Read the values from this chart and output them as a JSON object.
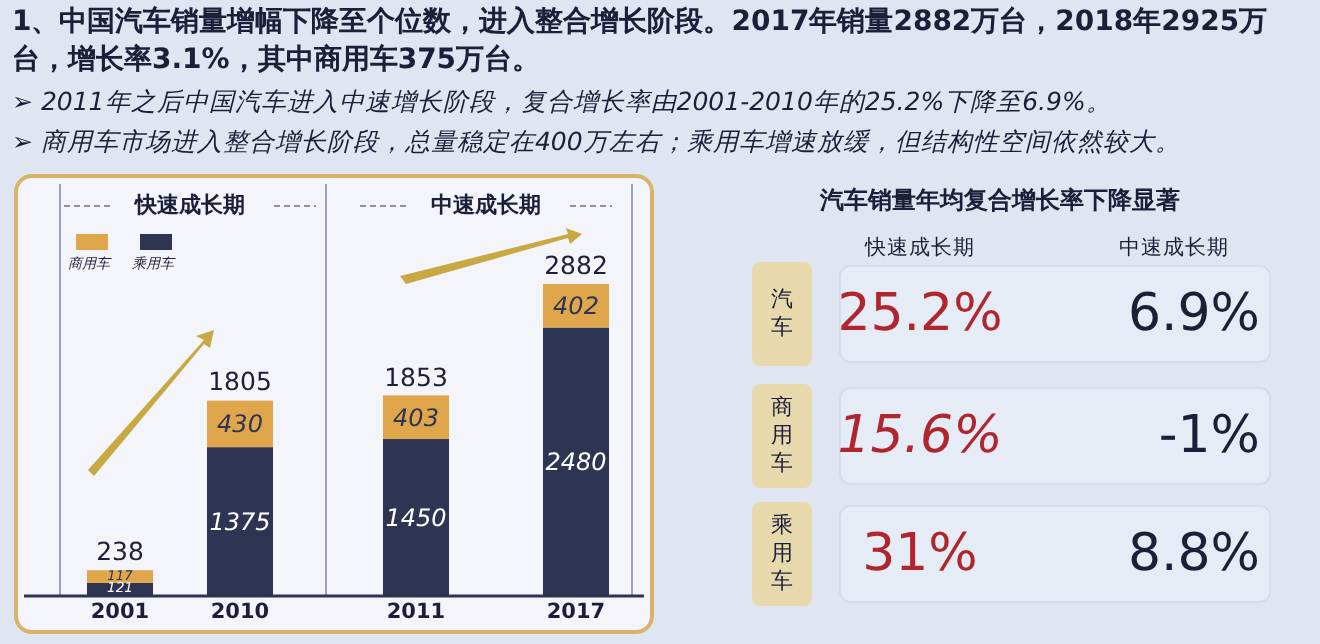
{
  "chart_data": [
    {
      "type": "bar",
      "stacked": true,
      "title": "1、中国汽车销量增幅下降至个位数，进入整合增长阶段。2017年销量2882万台，2018年2925万台，增长率3.1%，其中商用车375万台。",
      "annotations": [
        "➢ 2011年之后中国汽车进入中速增长阶段，复合增长率由2001-2010年的25.2%下降至6.9%。",
        "➢ 商用车市场进入整合增长阶段，总量稳定在400万左右；乘用车增速放缓，但结构性空间依然较大。",
        "快速成长期",
        "中速成长期"
      ],
      "categories": [
        "2001",
        "2010",
        "2011",
        "2017"
      ],
      "series": [
        {
          "name": "乘用车",
          "color": "#2e3552",
          "values": [
            121,
            1375,
            1450,
            2480
          ]
        },
        {
          "name": "商用车",
          "color": "#e0a64c",
          "values": [
            117,
            430,
            403,
            402
          ]
        }
      ],
      "totals": [
        "238",
        "1805",
        "1853",
        "2882"
      ],
      "data_labels": true,
      "legend": "top left"
    },
    {
      "type": "other",
      "title": "汽车销量年均复合增长率下降显著",
      "categories": [
        "汽车",
        "商用车",
        "乘用车"
      ],
      "annotations": [
        "快速成长期",
        "中速成长期",
        "25.2%",
        "6.9%",
        "15.6%",
        "-1%",
        "31%",
        "8.8%"
      ]
    }
  ]
}
